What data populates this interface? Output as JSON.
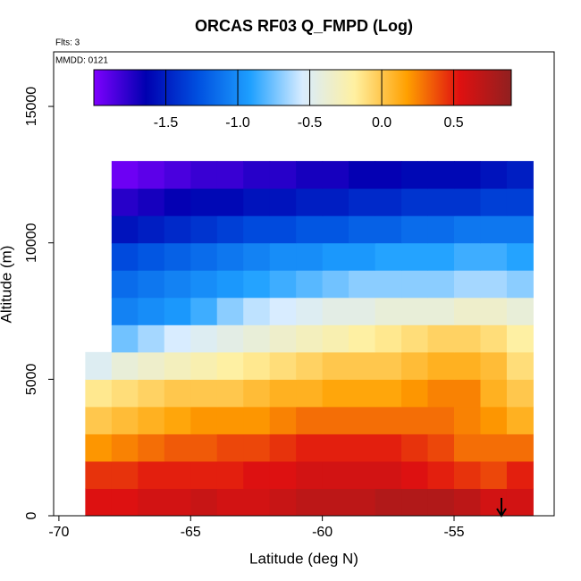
{
  "chart_data": {
    "type": "heatmap",
    "title": "ORCAS RF03 Q_FMPD (Log)",
    "annotations": [
      "Flts: 3",
      "MMDD: 0121"
    ],
    "x_label": "Latitude (deg N)",
    "y_label": "Altitude (m)",
    "xlim": [
      -70.2,
      -51.2
    ],
    "xticks": [
      -70,
      -65,
      -60,
      -55
    ],
    "ylim": [
      0,
      17000
    ],
    "yticks": [
      0,
      5000,
      10000,
      15000
    ],
    "x_edges": [
      -69,
      -68,
      -67,
      -66,
      -65,
      -64,
      -63,
      -62,
      -61,
      -60,
      -59,
      -58,
      -57,
      -56,
      -55,
      -54,
      -53,
      -52
    ],
    "y_edges": [
      0,
      1000,
      2000,
      3000,
      4000,
      5000,
      6000,
      7000,
      8000,
      9000,
      10000,
      11000,
      12000,
      13000
    ],
    "z": [
      [
        0.55,
        0.55,
        0.6,
        0.6,
        0.65,
        0.6,
        0.6,
        0.65,
        0.7,
        0.7,
        0.7,
        0.75,
        0.75,
        0.75,
        0.7,
        0.6,
        0.6
      ],
      [
        0.45,
        0.45,
        0.5,
        0.5,
        0.5,
        0.5,
        0.55,
        0.55,
        0.6,
        0.6,
        0.6,
        0.6,
        0.55,
        0.5,
        0.45,
        0.4,
        0.5
      ],
      [
        0.2,
        0.25,
        0.3,
        0.35,
        0.35,
        0.4,
        0.4,
        0.45,
        0.5,
        0.5,
        0.5,
        0.5,
        0.45,
        0.4,
        0.3,
        0.3,
        0.3
      ],
      [
        0.0,
        0.05,
        0.1,
        0.15,
        0.2,
        0.2,
        0.2,
        0.25,
        0.3,
        0.3,
        0.3,
        0.3,
        0.3,
        0.3,
        0.25,
        0.2,
        0.1
      ],
      [
        -0.15,
        -0.1,
        -0.05,
        0.0,
        0.0,
        0.0,
        0.05,
        0.1,
        0.1,
        0.15,
        0.15,
        0.15,
        0.2,
        0.25,
        0.25,
        0.1,
        0.0
      ],
      [
        -0.5,
        -0.4,
        -0.35,
        -0.3,
        -0.25,
        -0.2,
        -0.15,
        -0.1,
        -0.05,
        0.0,
        0.0,
        0.0,
        0.05,
        0.1,
        0.1,
        0.05,
        -0.1
      ],
      [
        null,
        -0.75,
        -0.65,
        -0.55,
        -0.5,
        -0.45,
        -0.4,
        -0.35,
        -0.3,
        -0.25,
        -0.2,
        -0.15,
        -0.1,
        -0.05,
        -0.05,
        -0.1,
        -0.2
      ],
      [
        null,
        -1.05,
        -1.0,
        -0.95,
        -0.85,
        -0.7,
        -0.6,
        -0.55,
        -0.5,
        -0.45,
        -0.45,
        -0.4,
        -0.4,
        -0.4,
        -0.35,
        -0.35,
        -0.4
      ],
      [
        null,
        -1.15,
        -1.1,
        -1.05,
        -1.0,
        -0.95,
        -0.9,
        -0.85,
        -0.8,
        -0.75,
        -0.7,
        -0.7,
        -0.7,
        -0.7,
        -0.65,
        -0.65,
        -0.7
      ],
      [
        null,
        -1.3,
        -1.25,
        -1.2,
        -1.15,
        -1.1,
        -1.05,
        -1.0,
        -1.0,
        -0.95,
        -0.95,
        -0.9,
        -0.9,
        -0.9,
        -0.85,
        -0.85,
        -0.9
      ],
      [
        null,
        -1.55,
        -1.5,
        -1.45,
        -1.4,
        -1.35,
        -1.3,
        -1.3,
        -1.25,
        -1.25,
        -1.2,
        -1.2,
        -1.15,
        -1.15,
        -1.1,
        -1.1,
        -1.1
      ],
      [
        null,
        -1.75,
        -1.7,
        -1.65,
        -1.6,
        -1.6,
        -1.55,
        -1.55,
        -1.5,
        -1.5,
        -1.45,
        -1.45,
        -1.4,
        -1.4,
        -1.4,
        -1.35,
        -1.35
      ],
      [
        null,
        -1.95,
        -1.9,
        -1.85,
        -1.8,
        -1.8,
        -1.75,
        -1.75,
        -1.7,
        -1.7,
        -1.65,
        -1.65,
        -1.6,
        -1.6,
        -1.6,
        -1.55,
        -1.5
      ]
    ],
    "colormap": [
      "#7f00ff",
      "#0000b0",
      "#0050e0",
      "#1ea0ff",
      "#d8ecff",
      "#fff0a0",
      "#ffa000",
      "#e01010",
      "#902020"
    ],
    "colorbar": {
      "lim": [
        -2.0,
        0.9
      ],
      "ticks": [
        -1.5,
        {
          "value": -1.0,
          "label": "-1.0"
        },
        -0.5,
        {
          "value": 0.0,
          "label": "0.0"
        },
        0.5
      ]
    }
  }
}
